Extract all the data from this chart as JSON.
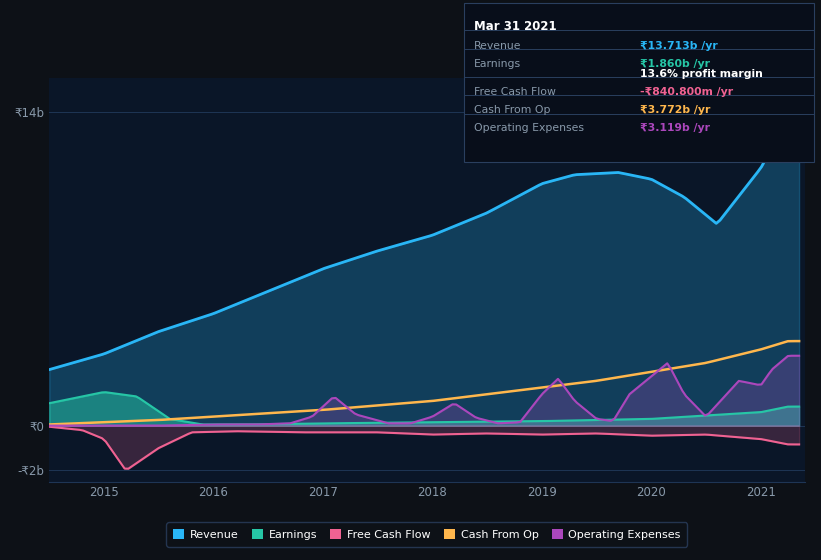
{
  "background_color": "#0d1117",
  "chart_bg": "#0a1628",
  "colors": {
    "revenue": "#29b6f6",
    "earnings": "#26c6a6",
    "free_cash_flow": "#f06292",
    "cash_from_op": "#ffb74d",
    "operating_expenses": "#ab47bc"
  },
  "info_box": {
    "date": "Mar 31 2021",
    "revenue_label": "Revenue",
    "revenue_value": "₹13.713b /yr",
    "revenue_color": "#29b6f6",
    "earnings_label": "Earnings",
    "earnings_value": "₹1.860b /yr",
    "earnings_color": "#26c6a6",
    "profit_margin": "13.6% profit margin",
    "fcf_label": "Free Cash Flow",
    "fcf_value": "-₹840.800m /yr",
    "fcf_color": "#f06292",
    "cashop_label": "Cash From Op",
    "cashop_value": "₹3.772b /yr",
    "cashop_color": "#ffb74d",
    "opex_label": "Operating Expenses",
    "opex_value": "₹3.119b /yr",
    "opex_color": "#ab47bc"
  },
  "legend": [
    {
      "label": "Revenue",
      "color": "#29b6f6"
    },
    {
      "label": "Earnings",
      "color": "#26c6a6"
    },
    {
      "label": "Free Cash Flow",
      "color": "#f06292"
    },
    {
      "label": "Cash From Op",
      "color": "#ffb74d"
    },
    {
      "label": "Operating Expenses",
      "color": "#ab47bc"
    }
  ]
}
